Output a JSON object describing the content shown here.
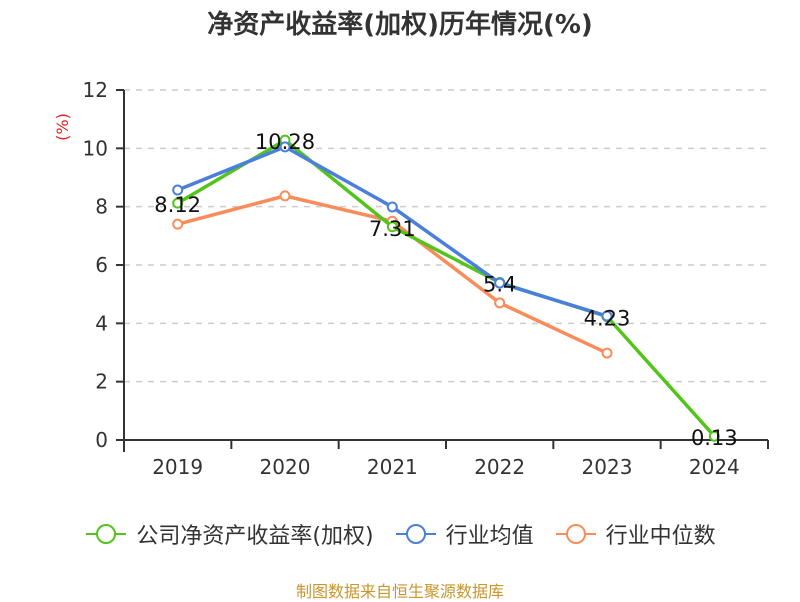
{
  "chart_data": {
    "type": "line",
    "title": "净资产收益率(加权)历年情况(%)",
    "xlabel": "",
    "ylabel": "(%)",
    "categories": [
      "2019",
      "2020",
      "2021",
      "2022",
      "2023",
      "2024"
    ],
    "ylim": [
      0,
      12
    ],
    "yticks": [
      "0",
      "2",
      "4",
      "6",
      "8",
      "10",
      "12"
    ],
    "grid": true,
    "legend_position": "bottom",
    "series": [
      {
        "name": "公司净资产收益率(加权)",
        "color": "#52c41a",
        "values": [
          8.12,
          10.28,
          7.31,
          5.4,
          4.23,
          0.13
        ],
        "labels": [
          "8.12",
          "10.28",
          "7.31",
          "5.4",
          "4.23",
          "0.13"
        ]
      },
      {
        "name": "行业均值",
        "color": "#4a7fdc",
        "values": [
          8.57,
          10.05,
          7.99,
          5.38,
          4.25,
          null
        ]
      },
      {
        "name": "行业中位数",
        "color": "#fa8c5a",
        "values": [
          7.4,
          8.37,
          7.5,
          4.7,
          2.98,
          null
        ]
      }
    ]
  },
  "source": "制图数据来自恒生聚源数据库"
}
